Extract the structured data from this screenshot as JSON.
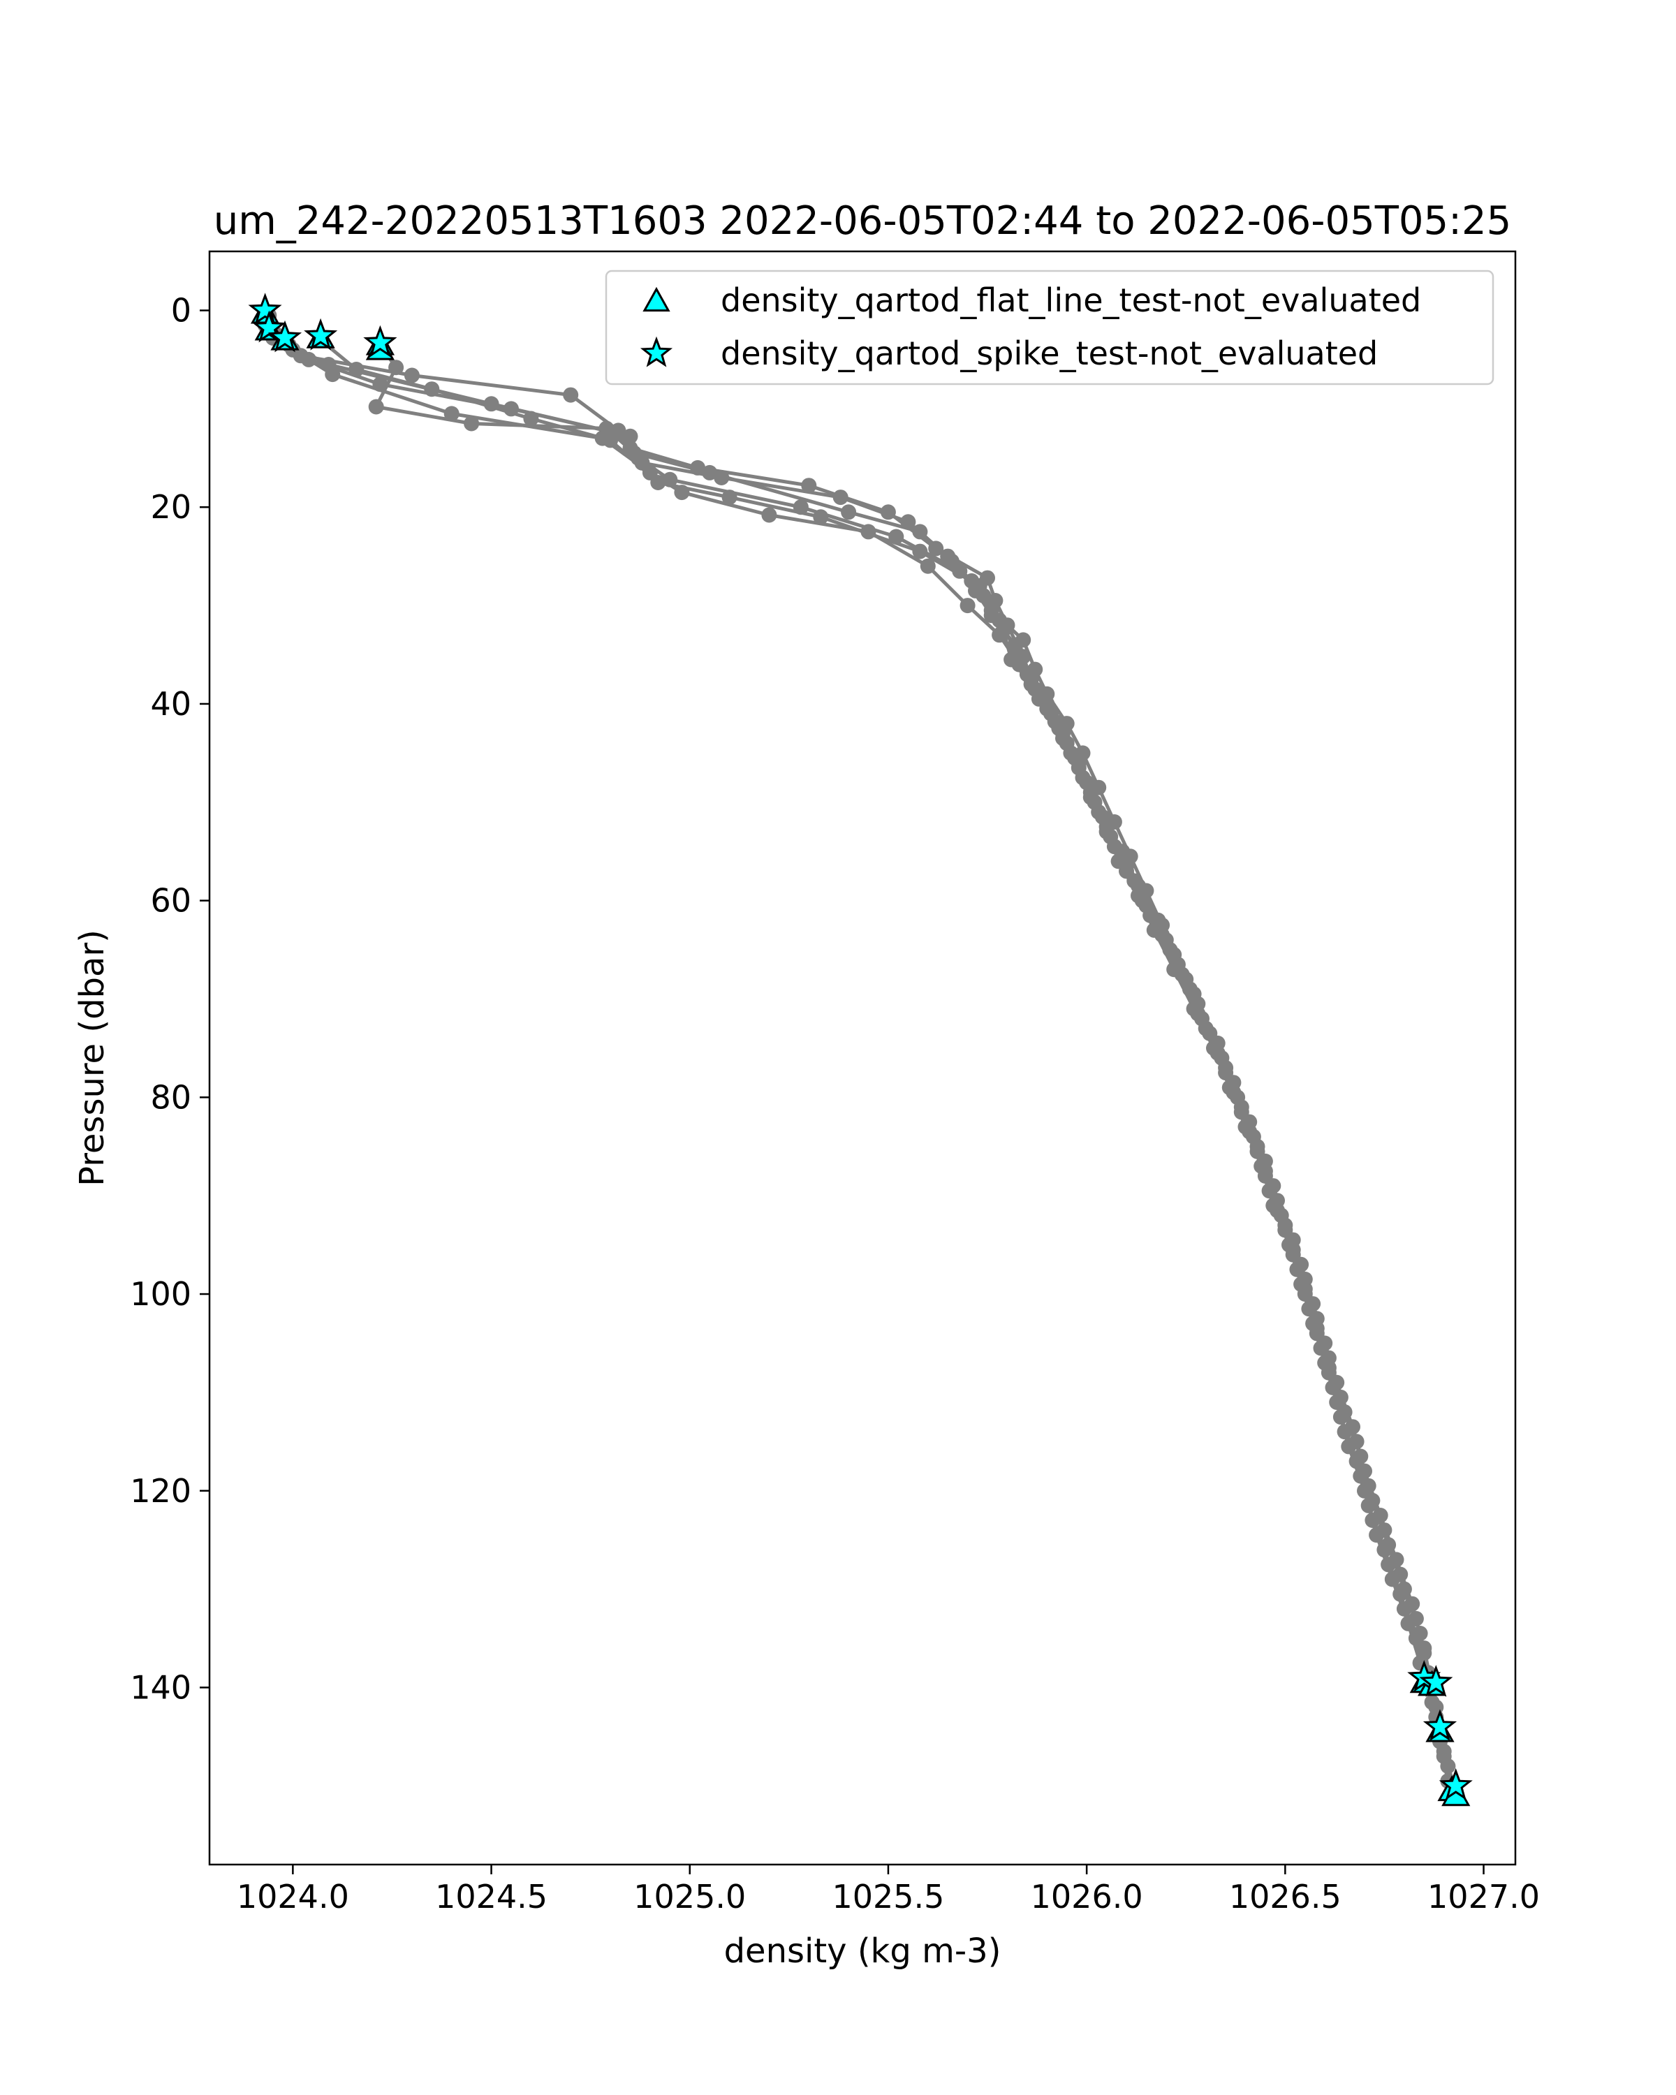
{
  "chart_data": {
    "type": "line",
    "title": "um_242-20220513T1603 2022-06-05T02:44 to 2022-06-05T05:25",
    "xlabel": "density (kg m-3)",
    "ylabel": "Pressure (dbar)",
    "xlim": [
      1023.79,
      1027.08
    ],
    "ylim": [
      158,
      -6
    ],
    "y_inverted": true,
    "grid": false,
    "legend_position": "top-right",
    "xticks": [
      1024.0,
      1024.5,
      1025.0,
      1025.5,
      1026.0,
      1026.5,
      1027.0
    ],
    "xtick_labels": [
      "1024.0",
      "1024.5",
      "1025.0",
      "1025.5",
      "1026.0",
      "1026.5",
      "1027.0"
    ],
    "yticks": [
      0,
      20,
      40,
      60,
      80,
      100,
      120,
      140
    ],
    "ytick_labels": [
      "0",
      "20",
      "40",
      "60",
      "80",
      "100",
      "120",
      "140"
    ],
    "colors": {
      "profile": "#808080",
      "flag_fill": "#00ffff",
      "flag_edge": "#000000"
    },
    "series": [
      {
        "kind": "profile",
        "points": [
          [
            1023.94,
            0.5
          ],
          [
            1023.96,
            2.5
          ],
          [
            1024.02,
            4.6
          ],
          [
            1024.3,
            6.6
          ],
          [
            1024.7,
            8.6
          ],
          [
            1024.82,
            12.2
          ],
          [
            1024.85,
            14.0
          ],
          [
            1025.02,
            16.0
          ],
          [
            1025.3,
            17.8
          ],
          [
            1025.5,
            20.5
          ],
          [
            1025.62,
            24.2
          ],
          [
            1025.75,
            27.2
          ],
          [
            1025.77,
            29.5
          ],
          [
            1025.8,
            32.0
          ],
          [
            1025.84,
            35.2
          ],
          [
            1025.87,
            38.5
          ],
          [
            1025.92,
            41.8
          ],
          [
            1025.96,
            45.0
          ],
          [
            1026.0,
            48.0
          ],
          [
            1026.04,
            51.5
          ],
          [
            1026.09,
            55.0
          ],
          [
            1026.13,
            58.5
          ],
          [
            1026.18,
            62.0
          ],
          [
            1026.22,
            65.5
          ],
          [
            1026.27,
            69.5
          ],
          [
            1026.31,
            73.5
          ],
          [
            1026.35,
            77.5
          ],
          [
            1026.39,
            81.5
          ],
          [
            1026.43,
            85.5
          ],
          [
            1026.46,
            89.5
          ],
          [
            1026.5,
            93.5
          ],
          [
            1026.53,
            97.5
          ],
          [
            1026.56,
            101.5
          ],
          [
            1026.59,
            105.5
          ],
          [
            1026.62,
            109.5
          ],
          [
            1026.65,
            114.0
          ],
          [
            1026.69,
            118.5
          ],
          [
            1026.72,
            123.0
          ],
          [
            1026.76,
            127.5
          ],
          [
            1026.8,
            132.0
          ],
          [
            1026.85,
            136.0
          ],
          [
            1026.87,
            140.0
          ],
          [
            1026.89,
            144.5
          ],
          [
            1026.91,
            148.0
          ],
          [
            1026.93,
            150.5
          ]
        ]
      },
      {
        "kind": "profile",
        "points": [
          [
            1023.93,
            1.5
          ],
          [
            1023.99,
            3.5
          ],
          [
            1024.09,
            5.5
          ],
          [
            1024.5,
            9.5
          ],
          [
            1024.82,
            12.5
          ],
          [
            1024.88,
            15.5
          ],
          [
            1025.08,
            17.0
          ],
          [
            1025.38,
            19.0
          ],
          [
            1025.55,
            21.5
          ],
          [
            1025.65,
            25.0
          ],
          [
            1025.72,
            28.5
          ],
          [
            1025.76,
            31.0
          ],
          [
            1025.82,
            34.0
          ],
          [
            1025.85,
            37.0
          ],
          [
            1025.9,
            40.5
          ],
          [
            1025.94,
            43.5
          ],
          [
            1025.98,
            46.5
          ],
          [
            1026.02,
            50.0
          ],
          [
            1026.06,
            53.5
          ],
          [
            1026.1,
            57.0
          ],
          [
            1026.15,
            60.5
          ],
          [
            1026.2,
            64.0
          ],
          [
            1026.25,
            68.0
          ],
          [
            1026.29,
            72.0
          ],
          [
            1026.34,
            76.0
          ],
          [
            1026.38,
            80.0
          ],
          [
            1026.42,
            84.0
          ],
          [
            1026.45,
            88.0
          ],
          [
            1026.49,
            92.0
          ],
          [
            1026.52,
            96.0
          ],
          [
            1026.55,
            100.0
          ],
          [
            1026.58,
            104.0
          ],
          [
            1026.61,
            108.0
          ],
          [
            1026.64,
            112.5
          ],
          [
            1026.68,
            117.0
          ],
          [
            1026.71,
            121.5
          ],
          [
            1026.75,
            126.0
          ],
          [
            1026.79,
            130.5
          ],
          [
            1026.83,
            135.0
          ],
          [
            1026.86,
            139.0
          ],
          [
            1026.88,
            143.0
          ],
          [
            1026.9,
            146.5
          ],
          [
            1026.92,
            151.0
          ]
        ]
      },
      {
        "kind": "profile",
        "points": [
          [
            1023.94,
            2.0
          ],
          [
            1024.0,
            4.0
          ],
          [
            1024.1,
            6.5
          ],
          [
            1024.4,
            10.5
          ],
          [
            1024.78,
            13.0
          ],
          [
            1024.9,
            16.5
          ],
          [
            1024.98,
            18.5
          ],
          [
            1025.2,
            20.8
          ],
          [
            1025.45,
            22.5
          ],
          [
            1025.6,
            26.0
          ],
          [
            1025.7,
            30.0
          ],
          [
            1025.78,
            33.0
          ],
          [
            1025.83,
            36.0
          ],
          [
            1025.88,
            39.5
          ],
          [
            1025.93,
            42.5
          ],
          [
            1025.97,
            45.5
          ],
          [
            1026.01,
            49.0
          ],
          [
            1026.05,
            52.5
          ],
          [
            1026.08,
            56.0
          ],
          [
            1026.13,
            59.5
          ],
          [
            1026.17,
            63.0
          ],
          [
            1026.22,
            67.0
          ],
          [
            1026.27,
            71.0
          ],
          [
            1026.32,
            75.0
          ],
          [
            1026.36,
            79.0
          ],
          [
            1026.4,
            83.0
          ],
          [
            1026.44,
            87.0
          ],
          [
            1026.47,
            91.0
          ],
          [
            1026.51,
            95.0
          ],
          [
            1026.54,
            99.0
          ],
          [
            1026.57,
            103.0
          ],
          [
            1026.6,
            107.0
          ],
          [
            1026.63,
            111.0
          ],
          [
            1026.66,
            115.5
          ],
          [
            1026.7,
            120.0
          ],
          [
            1026.73,
            124.5
          ],
          [
            1026.77,
            129.0
          ],
          [
            1026.81,
            133.5
          ],
          [
            1026.84,
            137.5
          ],
          [
            1026.87,
            141.5
          ],
          [
            1026.89,
            145.5
          ],
          [
            1026.91,
            149.5
          ]
        ]
      },
      {
        "kind": "profile",
        "points": [
          [
            1023.95,
            2.8
          ],
          [
            1024.04,
            5.0
          ],
          [
            1024.22,
            7.5
          ],
          [
            1024.55,
            10.0
          ],
          [
            1024.85,
            12.8
          ],
          [
            1024.87,
            15.0
          ],
          [
            1024.95,
            17.2
          ],
          [
            1025.28,
            20.0
          ],
          [
            1025.52,
            23.0
          ],
          [
            1025.68,
            26.5
          ],
          [
            1025.74,
            29.0
          ],
          [
            1025.79,
            32.5
          ],
          [
            1025.81,
            35.5
          ],
          [
            1025.86,
            38.0
          ],
          [
            1025.91,
            41.0
          ],
          [
            1025.95,
            44.0
          ],
          [
            1025.99,
            47.5
          ],
          [
            1026.03,
            51.0
          ],
          [
            1026.07,
            54.5
          ],
          [
            1026.12,
            58.0
          ],
          [
            1026.16,
            61.5
          ],
          [
            1026.21,
            65.0
          ],
          [
            1026.26,
            69.0
          ],
          [
            1026.3,
            73.0
          ],
          [
            1026.35,
            77.0
          ],
          [
            1026.39,
            81.0
          ],
          [
            1026.43,
            85.0
          ],
          [
            1026.47,
            89.0
          ],
          [
            1026.5,
            93.0
          ],
          [
            1026.54,
            97.0
          ],
          [
            1026.57,
            101.0
          ],
          [
            1026.6,
            105.0
          ],
          [
            1026.63,
            109.0
          ],
          [
            1026.67,
            113.5
          ],
          [
            1026.7,
            118.0
          ],
          [
            1026.74,
            122.5
          ],
          [
            1026.78,
            127.0
          ],
          [
            1026.82,
            131.5
          ],
          [
            1026.85,
            136.5
          ],
          [
            1026.88,
            142.0
          ],
          [
            1026.9,
            147.0
          ]
        ]
      },
      {
        "kind": "profile",
        "points": [
          [
            1024.07,
            3.0
          ],
          [
            1024.16,
            6.0
          ],
          [
            1024.35,
            8.0
          ],
          [
            1024.6,
            11.0
          ],
          [
            1024.8,
            13.2
          ],
          [
            1024.92,
            17.5
          ],
          [
            1025.1,
            19.0
          ],
          [
            1025.33,
            21.0
          ],
          [
            1025.58,
            24.5
          ],
          [
            1025.73,
            28.0
          ],
          [
            1025.76,
            30.5
          ],
          [
            1025.84,
            33.5
          ],
          [
            1025.87,
            36.5
          ],
          [
            1025.9,
            39.0
          ],
          [
            1025.95,
            42.0
          ],
          [
            1025.99,
            45.0
          ],
          [
            1026.03,
            48.5
          ],
          [
            1026.07,
            52.0
          ],
          [
            1026.11,
            55.5
          ],
          [
            1026.15,
            59.0
          ],
          [
            1026.19,
            62.5
          ],
          [
            1026.23,
            66.5
          ],
          [
            1026.28,
            70.5
          ],
          [
            1026.33,
            74.5
          ],
          [
            1026.37,
            78.5
          ],
          [
            1026.41,
            82.5
          ],
          [
            1026.45,
            86.5
          ],
          [
            1026.48,
            90.5
          ],
          [
            1026.52,
            94.5
          ],
          [
            1026.55,
            98.5
          ],
          [
            1026.58,
            102.5
          ],
          [
            1026.61,
            106.5
          ],
          [
            1026.64,
            110.5
          ],
          [
            1026.68,
            115.0
          ],
          [
            1026.71,
            119.5
          ],
          [
            1026.75,
            124.0
          ],
          [
            1026.79,
            128.5
          ],
          [
            1026.83,
            133.0
          ],
          [
            1026.86,
            138.5
          ]
        ]
      },
      {
        "kind": "profile",
        "points": [
          [
            1024.22,
            3.5
          ],
          [
            1024.26,
            5.8
          ],
          [
            1024.21,
            9.8
          ],
          [
            1024.45,
            11.5
          ],
          [
            1024.79,
            12.0
          ],
          [
            1024.86,
            14.5
          ],
          [
            1025.05,
            16.5
          ],
          [
            1025.4,
            20.5
          ],
          [
            1025.58,
            22.5
          ],
          [
            1025.66,
            25.5
          ],
          [
            1025.71,
            27.5
          ],
          [
            1025.78,
            31.5
          ],
          [
            1025.82,
            34.5
          ],
          [
            1025.86,
            37.5
          ],
          [
            1025.9,
            40.0
          ],
          [
            1025.94,
            43.0
          ],
          [
            1025.98,
            46.0
          ],
          [
            1026.01,
            49.5
          ],
          [
            1026.05,
            53.0
          ],
          [
            1026.1,
            56.5
          ],
          [
            1026.14,
            60.0
          ],
          [
            1026.19,
            63.5
          ],
          [
            1026.24,
            67.5
          ],
          [
            1026.28,
            71.5
          ],
          [
            1026.33,
            75.5
          ],
          [
            1026.37,
            79.5
          ],
          [
            1026.41,
            83.5
          ],
          [
            1026.45,
            87.5
          ],
          [
            1026.48,
            91.5
          ],
          [
            1026.52,
            95.5
          ],
          [
            1026.55,
            99.5
          ],
          [
            1026.58,
            103.5
          ],
          [
            1026.61,
            107.5
          ],
          [
            1026.65,
            112.0
          ],
          [
            1026.69,
            116.5
          ],
          [
            1026.72,
            121.0
          ],
          [
            1026.76,
            125.5
          ],
          [
            1026.8,
            130.0
          ],
          [
            1026.84,
            134.5
          ],
          [
            1026.86,
            140.0
          ],
          [
            1026.92,
            150.0
          ]
        ]
      }
    ],
    "flagged": [
      {
        "name": "density_qartod_flat_line_test-not_evaluated",
        "marker": "triangle",
        "points": [
          [
            1023.93,
            0.3
          ],
          [
            1023.94,
            2.0
          ],
          [
            1023.98,
            3.0
          ],
          [
            1024.07,
            2.8
          ],
          [
            1024.22,
            3.5
          ],
          [
            1024.22,
            4.0
          ],
          [
            1026.85,
            139.5
          ],
          [
            1026.87,
            139.8
          ],
          [
            1026.89,
            144.5
          ],
          [
            1026.92,
            150.5
          ],
          [
            1026.93,
            151.0
          ]
        ]
      },
      {
        "name": "density_qartod_spike_test-not_evaluated",
        "marker": "star",
        "points": [
          [
            1023.93,
            0.0
          ],
          [
            1023.94,
            1.8
          ],
          [
            1023.98,
            2.8
          ],
          [
            1024.07,
            2.6
          ],
          [
            1024.22,
            3.3
          ],
          [
            1026.85,
            139.0
          ],
          [
            1026.88,
            139.5
          ],
          [
            1026.89,
            144.0
          ],
          [
            1026.93,
            150.0
          ]
        ]
      }
    ]
  }
}
